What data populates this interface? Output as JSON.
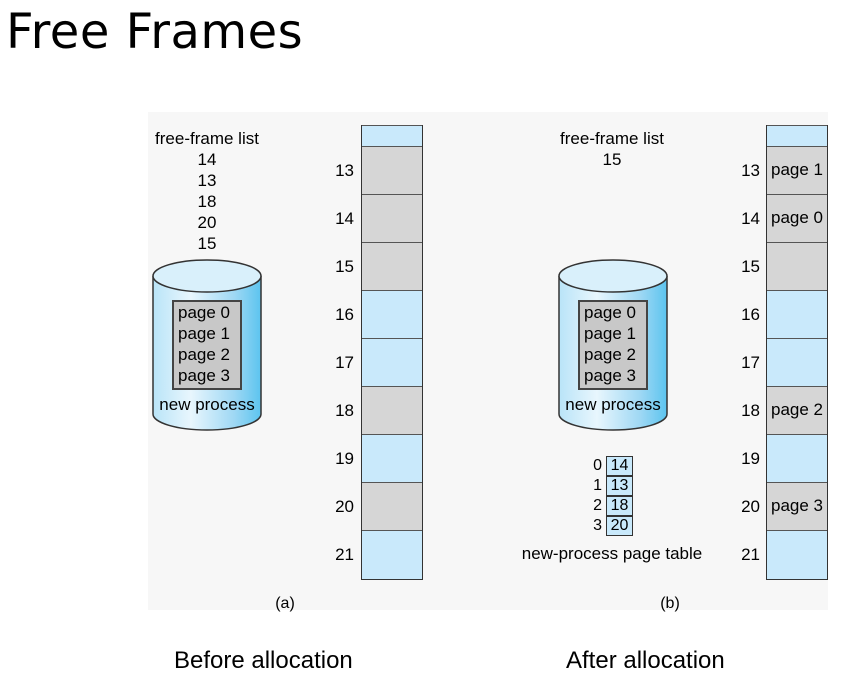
{
  "title": "Free Frames",
  "panel_a": {
    "list_title": "free-frame list",
    "list_items": [
      "14",
      "13",
      "18",
      "20",
      "15"
    ],
    "pages": [
      "page 0",
      "page 1",
      "page 2",
      "page 3"
    ],
    "process_label": "new process",
    "frame_numbers": [
      "13",
      "14",
      "15",
      "16",
      "17",
      "18",
      "19",
      "20",
      "21"
    ],
    "frame_states": [
      "free",
      "used",
      "used",
      "used",
      "free",
      "free",
      "used",
      "free",
      "used",
      "free"
    ],
    "label": "(a)"
  },
  "panel_b": {
    "list_title": "free-frame list",
    "list_items": [
      "15"
    ],
    "pages": [
      "page 0",
      "page 1",
      "page 2",
      "page 3"
    ],
    "process_label": "new process",
    "frame_numbers": [
      "13",
      "14",
      "15",
      "16",
      "17",
      "18",
      "19",
      "20",
      "21"
    ],
    "frame_contents": [
      "",
      "page 1",
      "page 0",
      "",
      "",
      "",
      "page 2",
      "",
      "page 3",
      ""
    ],
    "frame_states": [
      "free",
      "used",
      "used",
      "used",
      "free",
      "free",
      "used",
      "free",
      "used",
      "free"
    ],
    "page_table": {
      "indices": [
        "0",
        "1",
        "2",
        "3"
      ],
      "frames": [
        "14",
        "13",
        "18",
        "20"
      ],
      "caption": "new-process page table"
    },
    "label": "(b)"
  },
  "captions": {
    "before": "Before allocation",
    "after": "After allocation"
  },
  "colors": {
    "free_frame": "#c9e9fb",
    "used_frame": "#d6d6d6",
    "cylinder_light": "#e8f6fd",
    "cylinder_dark": "#5cc4ef"
  }
}
